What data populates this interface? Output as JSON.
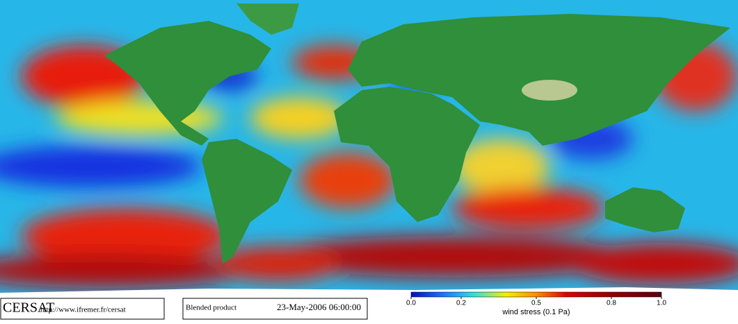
{
  "footer": {
    "logo": "CERSAT",
    "url": "http://www.ifremer.fr/cersat",
    "product": "Blended product",
    "date": "23-May-2006 06:00:00"
  },
  "colorbar": {
    "lim": [
      0,
      1
    ],
    "ticks": [
      {
        "value": 0,
        "label": "0.0"
      },
      {
        "value": 0.2,
        "label": "0.2"
      },
      {
        "value": 0.5,
        "label": "0.5"
      },
      {
        "value": 0.8,
        "label": "0.8"
      },
      {
        "value": 1,
        "label": "1.0"
      }
    ],
    "label": "wind stress (0.1 Pa)"
  }
}
